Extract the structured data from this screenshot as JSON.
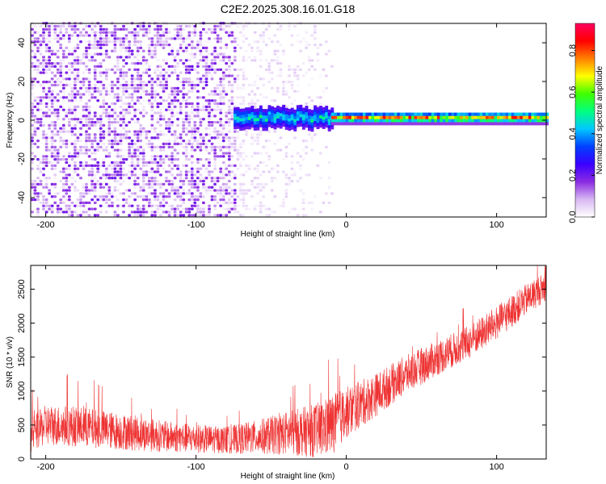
{
  "figure": {
    "title": "C2E2.2025.308.16.01.G18"
  },
  "chart_data": [
    {
      "type": "heatmap",
      "title": "C2E2.2025.308.16.01.G18",
      "xlabel": "Height of straight line (km)",
      "ylabel": "Frequency (Hz)",
      "xlim": [
        -210,
        133
      ],
      "ylim": [
        -50,
        50
      ],
      "xticks": [
        -200,
        -100,
        0,
        100
      ],
      "yticks": [
        -40,
        -20,
        0,
        20,
        40
      ],
      "grid": false,
      "colorbar": {
        "label": "Normalized spectral amplitude",
        "range": [
          0.0,
          0.93
        ],
        "ticks": [
          0.0,
          0.2,
          0.4,
          0.6,
          0.8
        ],
        "colors": [
          "#ffffff",
          "#d8b8f2",
          "#8a2be2",
          "#3a00ff",
          "#0040ff",
          "#00c8ff",
          "#00ff80",
          "#40ff00",
          "#ffff00",
          "#ff8000",
          "#ff0000",
          "#ff0060"
        ]
      },
      "regions": [
        {
          "x_from": -210,
          "x_to": -75,
          "description": "noise",
          "amplitude_range": [
            0.0,
            0.2
          ]
        },
        {
          "x_from": -75,
          "x_to": -10,
          "description": "fading noise",
          "amplitude_range": [
            0.0,
            0.1
          ]
        },
        {
          "x_from": -75,
          "x_to": -10,
          "description": "signal band",
          "frequency_center": 0.5,
          "frequency_halfwidth": 5,
          "amplitude_range": [
            0.2,
            0.55
          ]
        },
        {
          "x_from": -10,
          "x_to": 133,
          "description": "signal band",
          "frequency_center": 0.5,
          "frequency_halfwidth": 3,
          "amplitude_range": [
            0.4,
            0.9
          ]
        }
      ]
    },
    {
      "type": "line",
      "xlabel": "Height of straight line (km)",
      "ylabel": "SNR (10 * v/v)",
      "xlim": [
        -210,
        133
      ],
      "ylim": [
        0,
        2850
      ],
      "xticks": [
        -200,
        -100,
        0,
        100
      ],
      "yticks": [
        0,
        500,
        1000,
        1500,
        2000,
        2500
      ],
      "grid": false,
      "color": "#ee3333",
      "x": [
        -210,
        -200,
        -180,
        -160,
        -140,
        -120,
        -100,
        -80,
        -60,
        -40,
        -20,
        -10,
        0,
        20,
        40,
        60,
        80,
        100,
        120,
        133
      ],
      "y": [
        350,
        500,
        480,
        430,
        380,
        330,
        300,
        280,
        320,
        380,
        420,
        500,
        680,
        950,
        1250,
        1480,
        1700,
        2000,
        2350,
        2550
      ],
      "spread": [
        250,
        300,
        300,
        280,
        260,
        230,
        210,
        200,
        250,
        320,
        400,
        450,
        380,
        320,
        280,
        260,
        250,
        250,
        230,
        220
      ]
    }
  ]
}
